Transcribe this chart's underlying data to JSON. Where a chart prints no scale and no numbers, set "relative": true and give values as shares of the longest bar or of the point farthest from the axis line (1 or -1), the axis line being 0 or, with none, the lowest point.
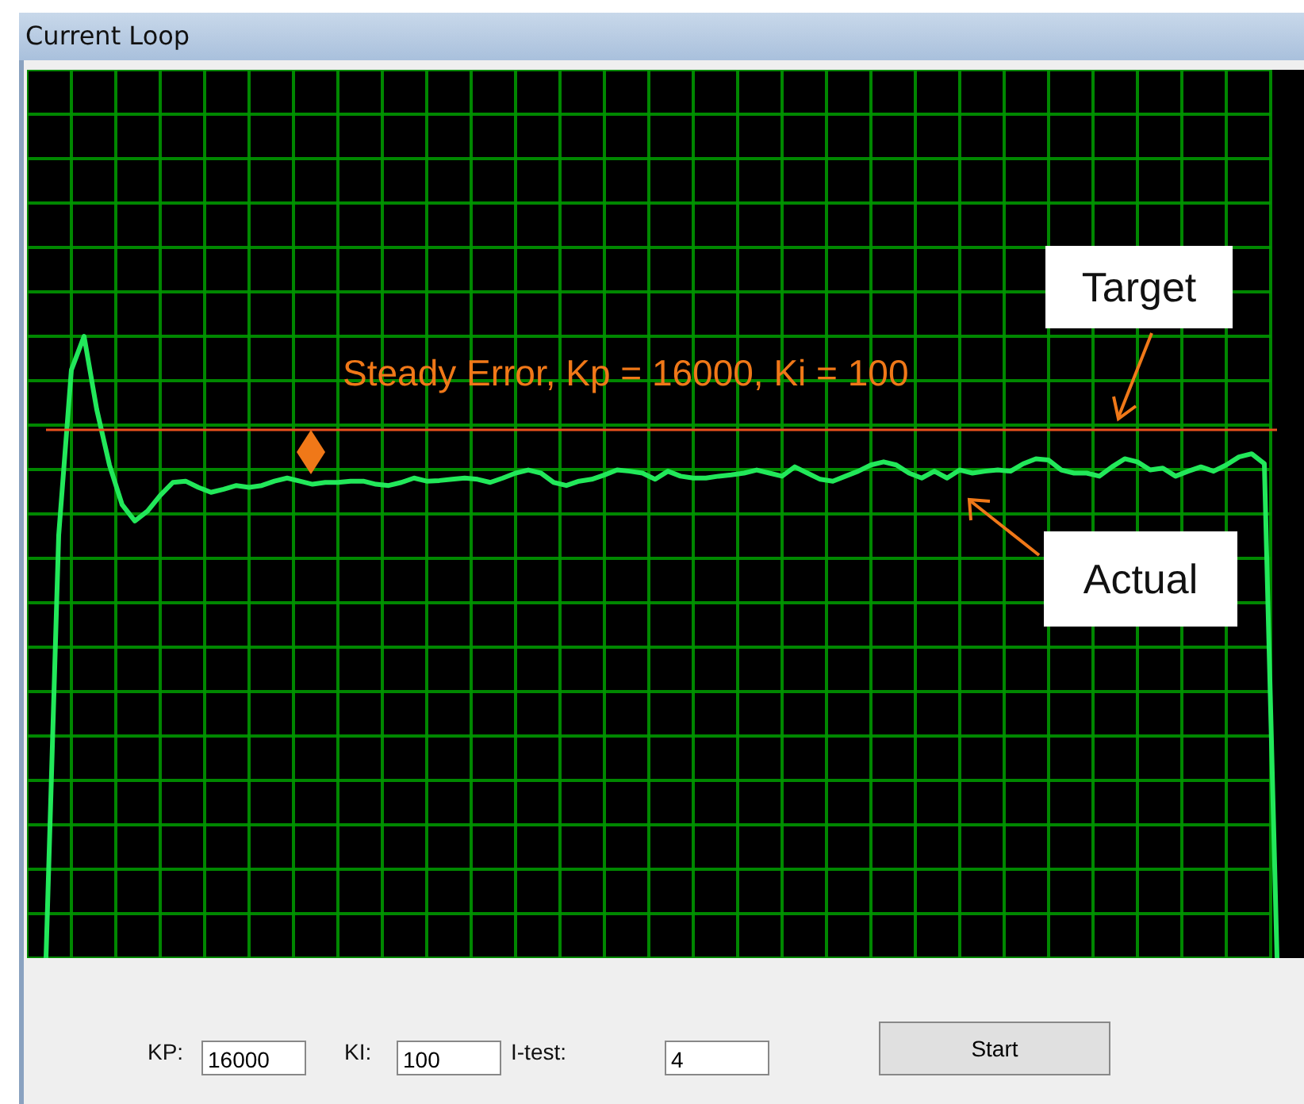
{
  "chart_data": {
    "type": "line",
    "title": "Current Loop",
    "relative": true,
    "grid": true,
    "line_style": "solid",
    "categories": [
      null,
      null,
      null,
      null,
      null,
      null,
      null,
      null,
      null,
      null,
      null,
      null,
      null,
      null,
      null,
      null,
      null,
      null,
      null,
      null,
      null,
      null,
      null,
      null,
      null,
      null,
      null,
      null,
      null,
      null,
      null,
      null,
      null,
      null,
      null,
      null,
      null,
      null,
      null,
      null,
      null,
      null,
      null,
      null,
      null,
      null,
      null,
      null,
      null,
      null,
      null,
      null,
      null,
      null,
      null,
      null,
      null,
      null,
      null,
      null,
      null,
      null,
      null,
      null,
      null,
      null,
      null,
      null,
      null,
      null,
      null,
      null,
      null,
      null,
      null,
      null,
      null,
      null,
      null,
      null,
      null,
      null,
      null,
      null,
      null,
      null,
      null,
      null,
      null,
      null,
      null,
      null,
      null,
      null,
      null,
      null,
      null,
      null
    ],
    "series": [
      {
        "name": "Actual",
        "color": "#22e85a",
        "values": [
          0,
          0.68,
          0.946,
          1,
          0.882,
          0.793,
          0.729,
          0.703,
          0.719,
          0.744,
          0.765,
          0.767,
          0.757,
          0.749,
          0.754,
          0.76,
          0.757,
          0.76,
          0.767,
          0.772,
          0.767,
          0.762,
          0.765,
          0.765,
          0.767,
          0.767,
          0.762,
          0.76,
          0.765,
          0.772,
          0.767,
          0.768,
          0.77,
          0.772,
          0.77,
          0.765,
          0.772,
          0.78,
          0.785,
          0.78,
          0.765,
          0.76,
          0.767,
          0.77,
          0.777,
          0.785,
          0.783,
          0.78,
          0.77,
          0.783,
          0.775,
          0.772,
          0.772,
          0.775,
          0.777,
          0.78,
          0.785,
          0.78,
          0.775,
          0.79,
          0.78,
          0.77,
          0.767,
          0.775,
          0.783,
          0.793,
          0.798,
          0.793,
          0.78,
          0.772,
          0.783,
          0.772,
          0.785,
          0.78,
          0.783,
          0.785,
          0.783,
          0.795,
          0.803,
          0.801,
          0.785,
          0.78,
          0.78,
          0.775,
          0.79,
          0.803,
          0.798,
          0.785,
          0.788,
          0.775,
          0.783,
          0.79,
          0.783,
          0.793,
          0.806,
          0.811,
          0.795,
          0
        ]
      }
    ],
    "ref_lines": [
      {
        "axis": "y",
        "value": 0.852,
        "label": "Target",
        "color": "#e8501e"
      }
    ],
    "annotations": [
      "Steady Error, Kp = 16000, Ki = 100",
      "KP:",
      "16000",
      "KI:",
      "100",
      "I-test:",
      "4",
      "Start"
    ]
  }
}
